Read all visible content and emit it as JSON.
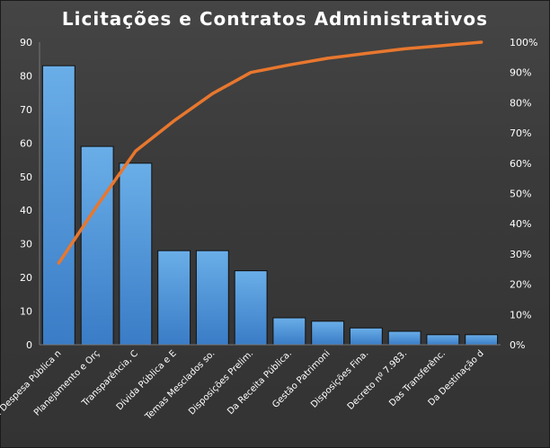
{
  "chart_data": {
    "type": "bar",
    "title": "Licitações  e  Contratos  Administrativos",
    "categories": [
      "Da Despesa Pública n",
      "Planejamento e Orç",
      "Transparência, C",
      "Dívida Pública e E",
      "Temas Mesclados so.",
      "Disposições Prelim.",
      "Da Receita Pública.",
      "Gestão Patrimoni",
      "Disposições Fina.",
      "Decreto nº 7.983.",
      "Das Transferênc.",
      "Da Destinação d"
    ],
    "series": [
      {
        "type": "bar",
        "values": [
          83,
          59,
          54,
          28,
          28,
          22,
          8,
          7,
          5,
          4,
          3,
          3
        ],
        "color": "#4a90d9"
      },
      {
        "type": "line",
        "axis": "right",
        "values": [
          27,
          46,
          64,
          74,
          83,
          90,
          92.5,
          94.7,
          96.3,
          97.8,
          98.9,
          100
        ],
        "color": "#e8772e"
      }
    ],
    "ylim": [
      0,
      90
    ],
    "y_ticks": [
      "0",
      "10",
      "20",
      "30",
      "40",
      "50",
      "60",
      "70",
      "80",
      "90"
    ],
    "y2lim": [
      0,
      100
    ],
    "y2_ticks": [
      "0%",
      "10%",
      "20%",
      "30%",
      "40%",
      "50%",
      "60%",
      "70%",
      "80%",
      "90%",
      "100%"
    ],
    "grid": false,
    "background": "#3a3a3a"
  }
}
